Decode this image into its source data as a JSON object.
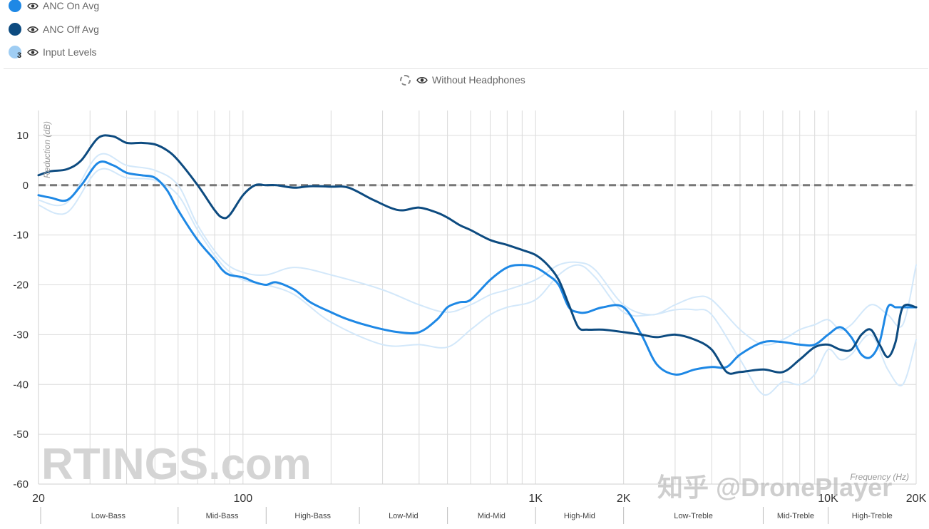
{
  "legend": {
    "items": [
      {
        "label": "ANC On Avg",
        "color": "#1e88e5"
      },
      {
        "label": "ANC Off Avg",
        "color": "#0d4b80"
      },
      {
        "label": "Input Levels",
        "color": "#9fcdf3",
        "badge": "3"
      }
    ],
    "without_headphones": "Without Headphones"
  },
  "watermarks": {
    "left": "RTINGS.com",
    "right": "知乎 @DronePlayer"
  },
  "chart_data": {
    "type": "line",
    "xscale": "log",
    "xlim": [
      20,
      20000
    ],
    "ylim": [
      -60,
      15
    ],
    "ylabel": "Reduction (dB)",
    "xlabel": "Frequency (Hz)",
    "grid": true,
    "yticks": [
      10,
      0,
      -10,
      -20,
      -30,
      -40,
      -50,
      -60
    ],
    "xtick_labels": [
      {
        "value": 20,
        "label": "20"
      },
      {
        "value": 100,
        "label": "100"
      },
      {
        "value": 1000,
        "label": "1K"
      },
      {
        "value": 2000,
        "label": "2K"
      },
      {
        "value": 10000,
        "label": "10K"
      },
      {
        "value": 20000,
        "label": "20K"
      }
    ],
    "bands": [
      {
        "label": "Low-Bass",
        "range": [
          20,
          60
        ]
      },
      {
        "label": "Mid-Bass",
        "range": [
          60,
          120
        ]
      },
      {
        "label": "High-Bass",
        "range": [
          120,
          250
        ]
      },
      {
        "label": "Low-Mid",
        "range": [
          250,
          500
        ]
      },
      {
        "label": "Mid-Mid",
        "range": [
          500,
          1000
        ]
      },
      {
        "label": "High-Mid",
        "range": [
          1000,
          2000
        ]
      },
      {
        "label": "Low-Treble",
        "range": [
          2000,
          6000
        ]
      },
      {
        "label": "Mid-Treble",
        "range": [
          6000,
          10000
        ]
      },
      {
        "label": "High-Treble",
        "range": [
          10000,
          20000
        ]
      }
    ],
    "reference_line": {
      "y": 0,
      "style": "dashed"
    },
    "series": [
      {
        "name": "Input Levels",
        "role": "input-upper",
        "color": "#d3e8fa",
        "x": [
          20,
          25,
          32,
          40,
          50,
          60,
          70,
          85,
          100,
          120,
          150,
          200,
          300,
          400,
          500,
          600,
          700,
          800,
          1000,
          1200,
          1400,
          1600,
          2000,
          2500,
          3000,
          3500,
          4000,
          5000,
          6000,
          7000,
          8000,
          9000,
          10000,
          11000,
          12000,
          14000,
          16000,
          18000,
          20000
        ],
        "y": [
          -3,
          -3.5,
          6,
          4,
          3,
          0,
          -8,
          -15,
          -17.5,
          -18,
          -16.5,
          -18,
          -21,
          -24,
          -25.5,
          -24,
          -22,
          -21,
          -19,
          -16,
          -15.5,
          -17,
          -24,
          -26,
          -24,
          -22.5,
          -23,
          -29,
          -32,
          -31,
          -29,
          -28,
          -27,
          -29,
          -28,
          -24,
          -26,
          -28,
          -16
        ]
      },
      {
        "name": "Input Levels",
        "role": "input-lower",
        "color": "#d3e8fa",
        "x": [
          20,
          25,
          32,
          40,
          50,
          60,
          70,
          85,
          100,
          120,
          150,
          200,
          300,
          400,
          500,
          600,
          700,
          800,
          1000,
          1200,
          1400,
          1600,
          2000,
          2500,
          3000,
          3500,
          4000,
          5000,
          6000,
          7000,
          8000,
          9000,
          10000,
          11000,
          12000,
          14000,
          16000,
          18000,
          20000
        ],
        "y": [
          -4,
          -5.5,
          3,
          1.5,
          1,
          -2,
          -9,
          -16,
          -19,
          -20,
          -22,
          -27.5,
          -32,
          -32,
          -32.5,
          -29,
          -26,
          -24.5,
          -23,
          -18,
          -16,
          -18.5,
          -25.5,
          -26,
          -25,
          -25,
          -26,
          -35,
          -42,
          -39.5,
          -40,
          -38,
          -33,
          -35,
          -34,
          -30,
          -37,
          -40,
          -31
        ]
      },
      {
        "name": "ANC On Avg",
        "role": "anc-on",
        "color": "#1e88e5",
        "x": [
          20,
          22,
          25,
          28,
          32,
          36,
          40,
          45,
          50,
          55,
          60,
          70,
          80,
          85,
          90,
          100,
          110,
          120,
          130,
          150,
          170,
          200,
          230,
          280,
          340,
          400,
          460,
          500,
          550,
          600,
          700,
          800,
          900,
          1000,
          1100,
          1200,
          1300,
          1400,
          1500,
          1700,
          2000,
          2300,
          2600,
          3000,
          3500,
          4000,
          4500,
          5000,
          6000,
          7000,
          8000,
          9000,
          10000,
          11000,
          12000,
          13000,
          14000,
          15000,
          16000,
          17000,
          18000,
          20000
        ],
        "y": [
          -2,
          -2.5,
          -3,
          0,
          4.5,
          4,
          2.5,
          2,
          1.5,
          -1,
          -5,
          -11,
          -15,
          -17,
          -18,
          -18.5,
          -19.5,
          -20,
          -19.5,
          -21,
          -23.5,
          -25.5,
          -27,
          -28.5,
          -29.5,
          -29.5,
          -27,
          -24.5,
          -23.5,
          -23,
          -19,
          -16.5,
          -16,
          -16.5,
          -18,
          -20,
          -24.5,
          -25.5,
          -25.5,
          -24.5,
          -24.5,
          -30,
          -36,
          -38,
          -37,
          -36.5,
          -36.5,
          -34,
          -31.5,
          -31.5,
          -32,
          -32,
          -30,
          -28.5,
          -30.5,
          -34,
          -34.5,
          -31.5,
          -24.5,
          -24.5,
          -24.5,
          -24.5
        ]
      },
      {
        "name": "ANC Off Avg",
        "role": "anc-off",
        "color": "#0d4b80",
        "x": [
          20,
          22,
          25,
          28,
          32,
          36,
          40,
          45,
          50,
          55,
          60,
          70,
          80,
          85,
          90,
          100,
          110,
          120,
          130,
          150,
          170,
          200,
          230,
          280,
          340,
          400,
          460,
          500,
          550,
          600,
          700,
          800,
          900,
          1000,
          1100,
          1200,
          1300,
          1400,
          1500,
          1700,
          2000,
          2300,
          2600,
          3000,
          3500,
          4000,
          4500,
          5000,
          6000,
          7000,
          8000,
          9000,
          10000,
          11000,
          12000,
          13000,
          14000,
          15000,
          16000,
          17000,
          18000,
          20000
        ],
        "y": [
          2,
          2.8,
          3.2,
          5,
          9.5,
          9.8,
          8.5,
          8.5,
          8.2,
          7,
          5,
          0,
          -5,
          -6.5,
          -6,
          -2,
          0,
          0,
          0,
          -0.5,
          -0.2,
          -0.3,
          -0.5,
          -3,
          -5,
          -4.5,
          -5.5,
          -6.5,
          -8,
          -9,
          -11,
          -12,
          -13,
          -14,
          -16,
          -19,
          -24,
          -28.5,
          -29,
          -29,
          -29.5,
          -30,
          -30.5,
          -30,
          -31,
          -33,
          -37.5,
          -37.5,
          -37,
          -37.5,
          -35,
          -32.5,
          -32,
          -33,
          -33,
          -30,
          -29,
          -32,
          -34.5,
          -31.5,
          -24.5,
          -24.5
        ]
      }
    ]
  }
}
